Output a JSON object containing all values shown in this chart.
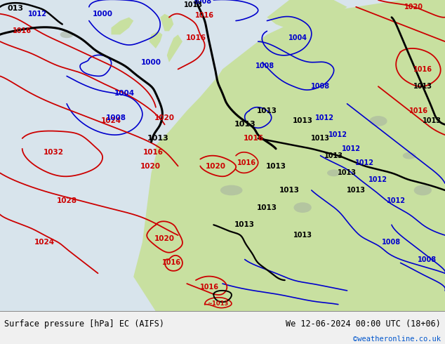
{
  "title_left": "Surface pressure [hPa] EC (AIFS)",
  "title_right": "We 12-06-2024 00:00 UTC (18+06)",
  "copyright": "©weatheronline.co.uk",
  "fig_width": 6.34,
  "fig_height": 4.9,
  "dpi": 100,
  "ocean_color": "#dce8f0",
  "land_color_light": "#c8e6a0",
  "land_color_dark": "#b0c890",
  "gray_terrain": "#a8a8a8",
  "bottom_bar_color": "#f0f0f0",
  "blue": "#0000cc",
  "red": "#cc0000",
  "black": "#000000"
}
